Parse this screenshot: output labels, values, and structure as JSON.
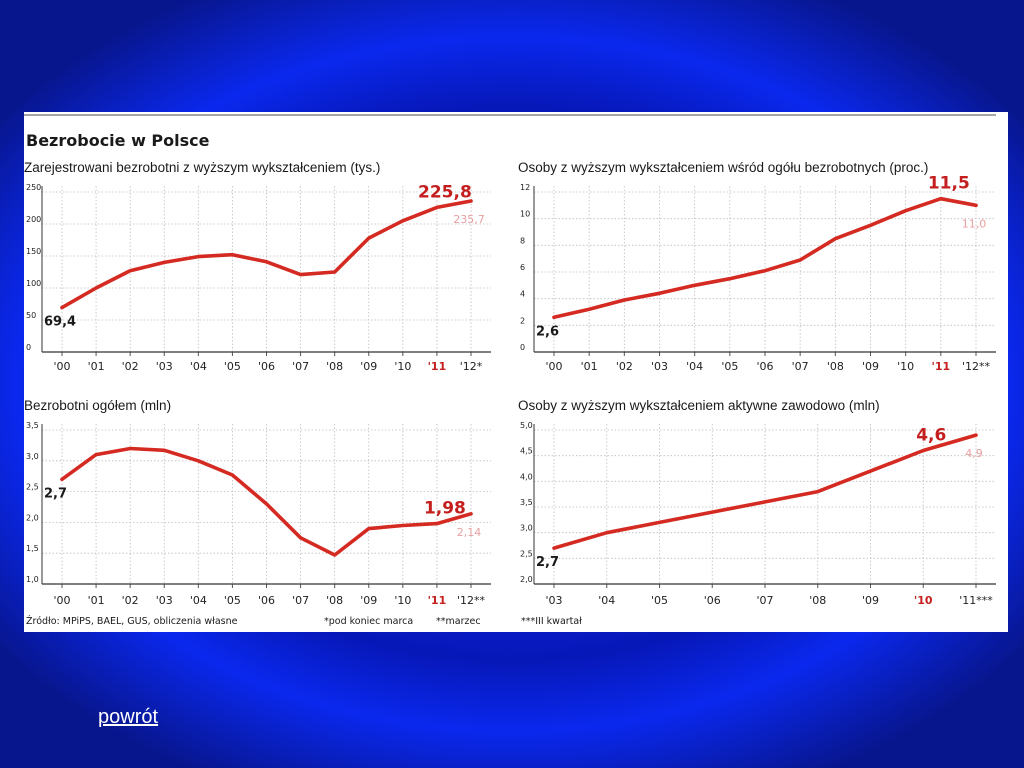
{
  "figure": {
    "title": "Bezrobocie w Polsce",
    "source": "Źródło: MPiPS, BAEL, GUS, obliczenia własne",
    "notes": [
      "*pod koniec marca",
      "**marzec",
      "***III kwartał"
    ]
  },
  "chart_data": [
    {
      "type": "line",
      "title": "Zarejestrowani bezrobotni z wyższym wykształceniem (tys.)",
      "categories": [
        "'00",
        "'01",
        "'02",
        "'03",
        "'04",
        "'05",
        "'06",
        "'07",
        "'08",
        "'09",
        "'10",
        "'11",
        "'12*"
      ],
      "highlight_category": "'11",
      "values": [
        69.4,
        100,
        127,
        140,
        149,
        152,
        141,
        121,
        125,
        178,
        205,
        226,
        236
      ],
      "yticks": [
        "0",
        "50",
        "100",
        "150",
        "200",
        "250"
      ],
      "ylim": [
        0,
        250
      ],
      "start_label": "69,4",
      "peak_label": "225,8",
      "projection_label": "235,7",
      "color": "#d42a22"
    },
    {
      "type": "line",
      "title": "Osoby z wyższym wykształceniem wśród ogółu bezrobotnych (proc.)",
      "categories": [
        "'00",
        "'01",
        "'02",
        "'03",
        "'04",
        "'05",
        "'06",
        "'07",
        "'08",
        "'09",
        "'10",
        "'11",
        "'12**"
      ],
      "highlight_category": "'11",
      "values": [
        2.6,
        3.2,
        3.9,
        4.4,
        5.0,
        5.5,
        6.1,
        6.9,
        8.5,
        9.5,
        10.6,
        11.5,
        11.0
      ],
      "yticks": [
        "0",
        "2",
        "4",
        "6",
        "8",
        "10",
        "12"
      ],
      "ylim": [
        0,
        12
      ],
      "start_label": "2,6",
      "peak_label": "11,5",
      "projection_label": "11,0",
      "color": "#d42a22"
    },
    {
      "type": "line",
      "title": "Bezrobotni ogółem (mln)",
      "categories": [
        "'00",
        "'01",
        "'02",
        "'03",
        "'04",
        "'05",
        "'06",
        "'07",
        "'08",
        "'09",
        "'10",
        "'11",
        "'12**"
      ],
      "highlight_category": "'11",
      "values": [
        2.7,
        3.1,
        3.2,
        3.17,
        3.0,
        2.77,
        2.3,
        1.75,
        1.47,
        1.9,
        1.95,
        1.98,
        2.14
      ],
      "yticks": [
        "1,0",
        "1,5",
        "2,0",
        "2,5",
        "3,0",
        "3,5"
      ],
      "ylim": [
        1.0,
        3.5
      ],
      "start_label": "2,7",
      "peak_label": "1,98",
      "projection_label": "2,14",
      "color": "#d42a22"
    },
    {
      "type": "line",
      "title": "Osoby z wyższym wykształceniem aktywne zawodowo (mln)",
      "categories": [
        "'03",
        "'04",
        "'05",
        "'06",
        "'07",
        "'08",
        "'09",
        "'10",
        "'11***"
      ],
      "highlight_category": "'10",
      "values": [
        2.7,
        3.0,
        3.2,
        3.4,
        3.6,
        3.8,
        4.2,
        4.6,
        4.9
      ],
      "yticks": [
        "2,0",
        "2,5",
        "3,0",
        "3,5",
        "4,0",
        "4,5",
        "5,0"
      ],
      "ylim": [
        2.0,
        5.0
      ],
      "start_label": "2,7",
      "peak_label": "4,6",
      "projection_label": "4,9",
      "color": "#d42a22"
    }
  ],
  "nav": {
    "back_label": "powrót"
  }
}
